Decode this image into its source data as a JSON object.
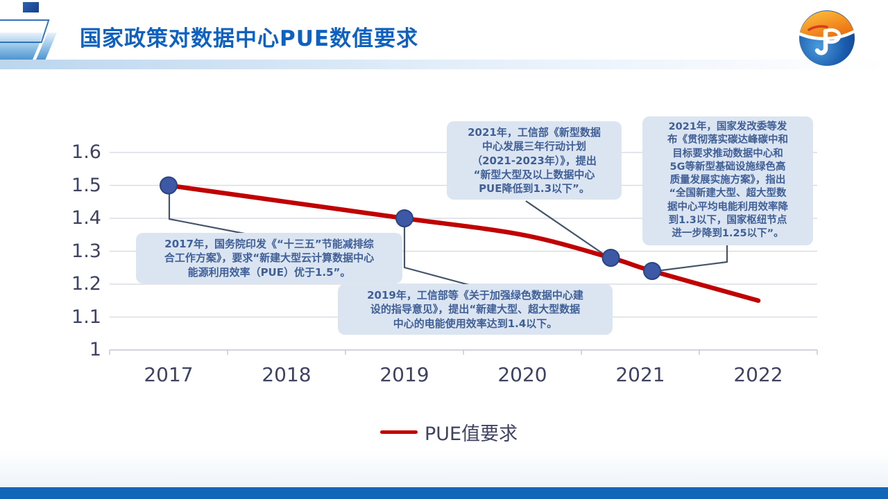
{
  "header": {
    "title": "国家政策对数据中心PUE数值要求"
  },
  "chart_data": {
    "type": "line",
    "title": "",
    "xlabel": "",
    "ylabel": "",
    "x_tick_labels": [
      "2017",
      "2018",
      "2019",
      "2020",
      "2021",
      "2022"
    ],
    "y_tick_labels": [
      "1.6",
      "1.5",
      "1.4",
      "1.3",
      "1.2",
      "1.1",
      "1"
    ],
    "y_tick_values": [
      1.6,
      1.5,
      1.4,
      1.3,
      1.2,
      1.1,
      1
    ],
    "ylim": [
      1,
      1.6
    ],
    "grid": true,
    "legend_position": "bottom",
    "series": [
      {
        "name": "PUE值要求",
        "color": "#C00000",
        "points": [
          [
            2017,
            1.5
          ],
          [
            2018,
            1.45
          ],
          [
            2019,
            1.4
          ],
          [
            2020,
            1.35
          ],
          [
            2020.75,
            1.28
          ],
          [
            2021.1,
            1.24
          ],
          [
            2022,
            1.15
          ]
        ]
      }
    ],
    "markers": {
      "color": "#3D59A5",
      "edge_color": "#2A4381",
      "points": [
        [
          2017,
          1.5
        ],
        [
          2019,
          1.4
        ],
        [
          2020.75,
          1.28
        ],
        [
          2021.1,
          1.24
        ]
      ]
    }
  },
  "annotations": [
    {
      "text": "2017年，国务院印发《“十三五”节能减排综\n合工作方案》，要求“新建大型云计算数据中心\n能源利用效率（PUE）优于1.5”。"
    },
    {
      "text": "2019年，工信部等《关于加强绿色数据中心建\n设的指导意见》，提出“新建大型、超大型数据\n中心的电能使用效率达到1.4以下。"
    },
    {
      "text": "2021年，工信部《新型数据\n中心发展三年行动计划\n（2021-2023年）》，提出\n“新型大型及以上数据中心\nPUE降低到1.3以下”。"
    },
    {
      "text": "2021年，国家发改委等发\n布《贯彻落实碳达峰碳中和\n目标要求推动数据中心和\n5G等新型基础设施绿色高\n质量发展实施方案》，指出\n“全国新建大型、超大型数\n据中心平均电能利用效率降\n到1.3以下，国家枢纽节点\n进一步降到1.25以下”。"
    }
  ],
  "legend": {
    "label": "PUE值要求"
  },
  "colors": {
    "title_blue": "#0D61C1",
    "line_red": "#C00000",
    "marker_navy": "#3D59A5",
    "callout_bg": "#DBE5F2",
    "callout_text": "#3F5F96",
    "axis_text": "#3D4360",
    "footer_bar": "#1166B8"
  }
}
